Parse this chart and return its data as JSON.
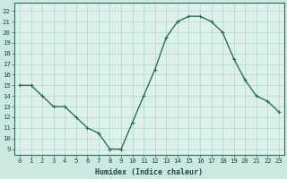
{
  "x": [
    0,
    1,
    2,
    3,
    4,
    5,
    6,
    7,
    8,
    9,
    10,
    11,
    12,
    13,
    14,
    15,
    16,
    17,
    18,
    19,
    20,
    21,
    22,
    23
  ],
  "y": [
    15,
    15,
    14,
    13,
    13,
    12,
    11,
    10.5,
    9,
    9,
    11.5,
    14,
    16.5,
    19.5,
    21,
    21.5,
    21.5,
    21,
    20,
    17.5,
    15.5,
    14,
    13.5,
    12.5
  ],
  "line_color": "#2d6e60",
  "marker_color": "#2d6e60",
  "bg_color": "#cce8e0",
  "grid_color": "#b0d8d0",
  "plot_bg_color": "#ddf0ea",
  "xlabel": "Humidex (Indice chaleur)",
  "ylabel_ticks": [
    9,
    10,
    11,
    12,
    13,
    14,
    15,
    16,
    17,
    18,
    19,
    20,
    21,
    22
  ],
  "ylim": [
    8.5,
    22.8
  ],
  "xlim": [
    -0.5,
    23.5
  ],
  "xtick_labels": [
    "0",
    "1",
    "2",
    "3",
    "4",
    "5",
    "6",
    "7",
    "8",
    "9",
    "10",
    "11",
    "12",
    "13",
    "14",
    "15",
    "16",
    "17",
    "18",
    "19",
    "20",
    "21",
    "22",
    "23"
  ],
  "linewidth": 1.0,
  "markersize": 2.5,
  "xlabel_fontsize": 6.0,
  "tick_fontsize": 5.2
}
